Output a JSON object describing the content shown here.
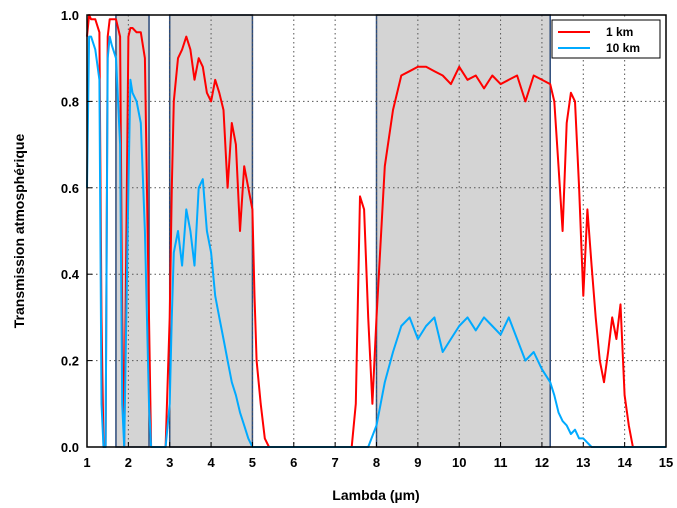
{
  "chart_data": {
    "type": "line",
    "xlabel": "Lambda (µm)",
    "ylabel": "Transmission atmosphérique",
    "xlim": [
      1,
      15
    ],
    "ylim": [
      0,
      1
    ],
    "x_ticks": [
      "1",
      "2",
      "3",
      "4",
      "5",
      "6",
      "7",
      "8",
      "9",
      "10",
      "11",
      "12",
      "13",
      "14",
      "15"
    ],
    "y_ticks": [
      "0.0",
      "0.2",
      "0.4",
      "0.6",
      "0.8",
      "1.0"
    ],
    "grid": "dotted",
    "legend_position": "top-right",
    "shaded_bands": [
      {
        "x": [
          1.7,
          2.5
        ]
      },
      {
        "x": [
          3.0,
          5.0
        ]
      },
      {
        "x": [
          8.0,
          12.2
        ]
      }
    ],
    "series": [
      {
        "name": "1 km",
        "color": "#ff0000",
        "x": [
          1.0,
          1.05,
          1.1,
          1.2,
          1.3,
          1.35,
          1.4,
          1.45,
          1.5,
          1.55,
          1.6,
          1.7,
          1.8,
          1.85,
          1.9,
          2.0,
          2.05,
          2.1,
          2.2,
          2.3,
          2.4,
          2.5,
          2.55,
          2.6,
          2.7,
          2.8,
          2.9,
          3.0,
          3.05,
          3.1,
          3.2,
          3.3,
          3.4,
          3.5,
          3.6,
          3.7,
          3.8,
          3.9,
          4.0,
          4.1,
          4.2,
          4.3,
          4.4,
          4.5,
          4.6,
          4.7,
          4.8,
          4.9,
          5.0,
          5.05,
          5.1,
          5.2,
          5.3,
          5.4,
          5.5,
          6.0,
          7.0,
          7.4,
          7.5,
          7.6,
          7.7,
          7.8,
          7.9,
          8.0,
          8.2,
          8.4,
          8.6,
          8.8,
          9.0,
          9.2,
          9.4,
          9.6,
          9.8,
          10.0,
          10.2,
          10.4,
          10.6,
          10.8,
          11.0,
          11.2,
          11.4,
          11.6,
          11.8,
          12.0,
          12.2,
          12.3,
          12.4,
          12.5,
          12.6,
          12.7,
          12.8,
          12.9,
          13.0,
          13.1,
          13.2,
          13.3,
          13.4,
          13.5,
          13.6,
          13.7,
          13.8,
          13.9,
          14.0,
          14.1,
          14.2,
          15.0
        ],
        "values": [
          0.95,
          1.0,
          0.99,
          0.99,
          0.96,
          0.3,
          0.0,
          0.0,
          0.95,
          0.99,
          0.99,
          0.99,
          0.95,
          0.3,
          0.0,
          0.95,
          0.97,
          0.97,
          0.96,
          0.96,
          0.9,
          0.3,
          0.0,
          0.0,
          0.0,
          0.0,
          0.0,
          0.3,
          0.6,
          0.8,
          0.9,
          0.92,
          0.95,
          0.92,
          0.85,
          0.9,
          0.88,
          0.82,
          0.8,
          0.85,
          0.82,
          0.78,
          0.6,
          0.75,
          0.7,
          0.5,
          0.65,
          0.6,
          0.55,
          0.35,
          0.2,
          0.1,
          0.02,
          0.0,
          0.0,
          0.0,
          0.0,
          0.0,
          0.1,
          0.58,
          0.55,
          0.3,
          0.1,
          0.3,
          0.65,
          0.78,
          0.86,
          0.87,
          0.88,
          0.88,
          0.87,
          0.86,
          0.84,
          0.88,
          0.85,
          0.86,
          0.83,
          0.86,
          0.84,
          0.85,
          0.86,
          0.8,
          0.86,
          0.85,
          0.84,
          0.8,
          0.65,
          0.5,
          0.75,
          0.82,
          0.8,
          0.6,
          0.35,
          0.55,
          0.42,
          0.3,
          0.2,
          0.15,
          0.22,
          0.3,
          0.25,
          0.33,
          0.12,
          0.05,
          0.0,
          0.0
        ]
      },
      {
        "name": "10 km",
        "color": "#00aaff",
        "x": [
          1.0,
          1.05,
          1.1,
          1.2,
          1.3,
          1.35,
          1.4,
          1.45,
          1.5,
          1.55,
          1.6,
          1.7,
          1.8,
          1.85,
          1.9,
          2.0,
          2.05,
          2.1,
          2.2,
          2.3,
          2.4,
          2.5,
          2.55,
          2.6,
          2.9,
          3.0,
          3.05,
          3.1,
          3.2,
          3.3,
          3.4,
          3.5,
          3.6,
          3.7,
          3.8,
          3.9,
          4.0,
          4.1,
          4.2,
          4.3,
          4.4,
          4.5,
          4.6,
          4.7,
          4.8,
          4.9,
          5.0,
          5.1,
          7.8,
          8.0,
          8.2,
          8.4,
          8.6,
          8.8,
          9.0,
          9.2,
          9.4,
          9.6,
          9.8,
          10.0,
          10.2,
          10.4,
          10.6,
          10.8,
          11.0,
          11.2,
          11.4,
          11.6,
          11.8,
          12.0,
          12.2,
          12.3,
          12.4,
          12.5,
          12.6,
          12.7,
          12.8,
          12.9,
          13.0,
          13.1,
          13.2,
          13.3,
          13.5,
          15.0
        ],
        "values": [
          0.6,
          0.95,
          0.95,
          0.92,
          0.85,
          0.1,
          0.0,
          0.0,
          0.9,
          0.95,
          0.93,
          0.9,
          0.7,
          0.1,
          0.0,
          0.6,
          0.85,
          0.82,
          0.8,
          0.75,
          0.5,
          0.1,
          0.0,
          0.0,
          0.0,
          0.1,
          0.3,
          0.45,
          0.5,
          0.42,
          0.55,
          0.5,
          0.42,
          0.6,
          0.62,
          0.5,
          0.45,
          0.35,
          0.3,
          0.25,
          0.2,
          0.15,
          0.12,
          0.08,
          0.05,
          0.02,
          0.0,
          0.0,
          0.0,
          0.05,
          0.15,
          0.22,
          0.28,
          0.3,
          0.25,
          0.28,
          0.3,
          0.22,
          0.25,
          0.28,
          0.3,
          0.27,
          0.3,
          0.28,
          0.26,
          0.3,
          0.25,
          0.2,
          0.22,
          0.18,
          0.15,
          0.12,
          0.08,
          0.06,
          0.05,
          0.03,
          0.04,
          0.02,
          0.02,
          0.01,
          0.0,
          0.0,
          0.0,
          0.0
        ]
      }
    ]
  }
}
